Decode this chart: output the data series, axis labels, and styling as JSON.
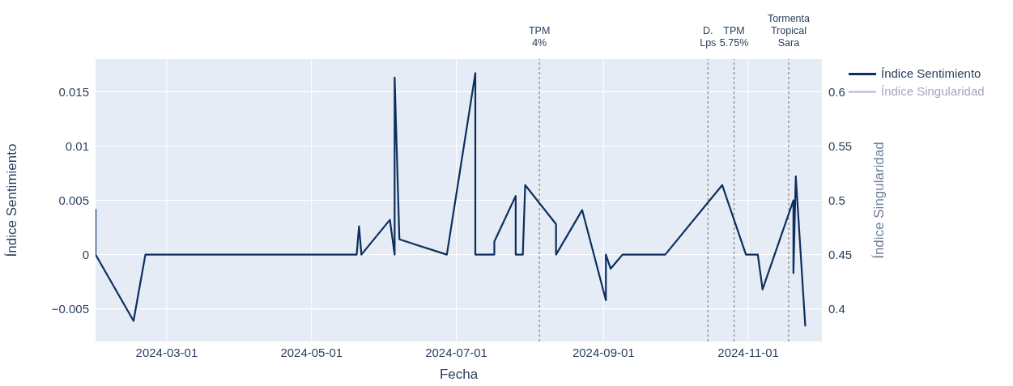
{
  "chart_data": {
    "type": "line",
    "xlabel": "Fecha",
    "ylabel": "Índice Sentimiento",
    "y2label": "Índice Singularidad",
    "x": [
      "2024-01-31",
      "2024-01-31",
      "2024-02-16",
      "2024-02-21",
      "2024-05-20",
      "2024-05-21",
      "2024-05-22",
      "2024-06-03",
      "2024-06-05",
      "2024-06-05",
      "2024-06-07",
      "2024-06-27",
      "2024-07-09",
      "2024-07-09",
      "2024-07-17",
      "2024-07-17",
      "2024-07-26",
      "2024-07-26",
      "2024-07-29",
      "2024-07-30",
      "2024-08-12",
      "2024-08-12",
      "2024-08-23",
      "2024-09-02",
      "2024-09-02",
      "2024-09-04",
      "2024-09-09",
      "2024-09-27",
      "2024-10-21",
      "2024-10-31",
      "2024-11-05",
      "2024-11-07",
      "2024-11-20",
      "2024-11-20",
      "2024-11-21",
      "2024-11-25"
    ],
    "series": [
      {
        "name": "Índice Sentimiento",
        "color": "#0d2f5e",
        "values": [
          0.0042,
          0,
          -0.0061,
          0,
          0,
          0.0026,
          0,
          0.0032,
          0,
          0.0163,
          0.0014,
          0,
          0.0167,
          0,
          0,
          0.0012,
          0.0054,
          0,
          0,
          0.0064,
          0.0028,
          0,
          0.0041,
          -0.0042,
          0,
          -0.0013,
          0,
          0,
          0.0064,
          0,
          0,
          -0.0032,
          0.005,
          -0.0017,
          0.0072,
          -0.0066
        ]
      },
      {
        "name": "Índice Singularidad",
        "color": "#c5cfdc",
        "axis": "y2",
        "values": [
          null,
          null,
          null,
          null,
          null,
          null,
          null,
          null,
          null,
          null,
          null,
          null,
          null,
          null,
          null,
          null,
          null,
          null,
          null,
          null,
          null,
          null,
          null,
          null,
          null,
          null,
          null,
          null,
          null,
          null,
          null,
          null,
          null,
          null,
          null,
          null
        ]
      }
    ],
    "xlim": [
      "2024-01-31",
      "2024-12-02"
    ],
    "xticks": [
      "2024-03-01",
      "2024-05-01",
      "2024-07-01",
      "2024-09-01",
      "2024-11-01"
    ],
    "ylim": [
      -0.008,
      0.018
    ],
    "yticks": [
      {
        "value": -0.005,
        "label": "−0.005"
      },
      0,
      0.005,
      0.01,
      0.015
    ],
    "y2lim": [
      0.37,
      0.63
    ],
    "y2ticks": [
      0.4,
      0.45,
      0.5,
      0.55,
      0.6
    ],
    "ref_lines": [
      {
        "axis": "x",
        "value": "2024-08-05",
        "label": "TPM\n4%",
        "color": "#8c8c8c",
        "line_style": "dotted"
      },
      {
        "axis": "x",
        "value": "2024-10-15",
        "label": "D.\nLps",
        "color": "#8c8c8c",
        "line_style": "dotted"
      },
      {
        "axis": "x",
        "value": "2024-10-26",
        "label": "TPM\n5.75%",
        "color": "#8c8c8c",
        "line_style": "dotted"
      },
      {
        "axis": "x",
        "value": "2024-11-18",
        "label": "Tormenta\nTropical\nSara",
        "color": "#8c8c8c",
        "line_style": "dotted"
      }
    ],
    "grid": true,
    "legend": "top right"
  }
}
